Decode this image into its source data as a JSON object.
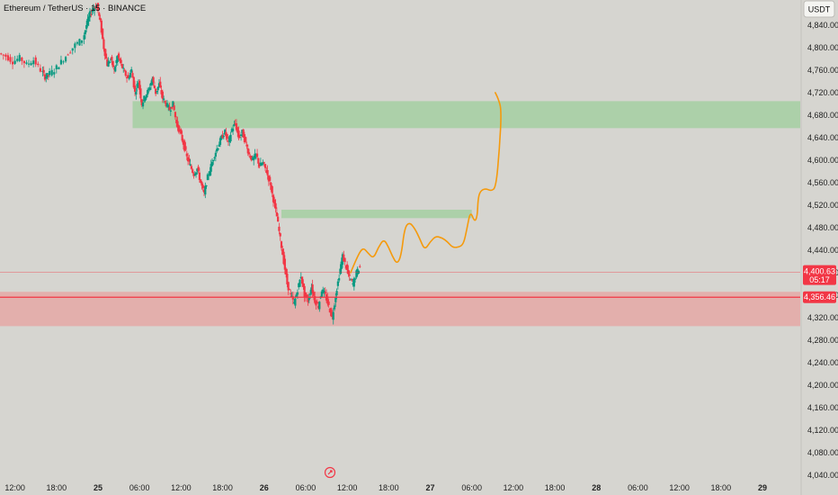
{
  "chart_data": {
    "type": "candlestick",
    "title": "Ethereum / TetherUS · 15 · BINANCE",
    "currency": "USDT",
    "ylim": [
      4020,
      4880
    ],
    "y_ticks": [
      4840,
      4800,
      4760,
      4720,
      4680,
      4640,
      4600,
      4560,
      4520,
      4480,
      4440,
      4400,
      4360,
      4320,
      4280,
      4240,
      4200,
      4160,
      4120,
      4080,
      4040
    ],
    "y_tick_labels": [
      "4,840.00",
      "4,800.00",
      "4,760.00",
      "4,720.00",
      "4,680.00",
      "4,640.00",
      "4,600.00",
      "4,560.00",
      "4,520.00",
      "4,480.00",
      "4,440.00",
      "4,400.00",
      "4,360.00",
      "4,320.00",
      "4,280.00",
      "4,240.00",
      "4,200.00",
      "4,160.00",
      "4,120.00",
      "4,080.00",
      "4,040.00"
    ],
    "x_ticks": [
      {
        "hour": -12,
        "label": "12:00",
        "bold": false
      },
      {
        "hour": -6,
        "label": "18:00",
        "bold": false
      },
      {
        "hour": 0,
        "label": "25",
        "bold": true
      },
      {
        "hour": 6,
        "label": "06:00",
        "bold": false
      },
      {
        "hour": 12,
        "label": "12:00",
        "bold": false
      },
      {
        "hour": 18,
        "label": "18:00",
        "bold": false
      },
      {
        "hour": 24,
        "label": "26",
        "bold": true
      },
      {
        "hour": 30,
        "label": "06:00",
        "bold": false
      },
      {
        "hour": 36,
        "label": "12:00",
        "bold": false
      },
      {
        "hour": 42,
        "label": "18:00",
        "bold": false
      },
      {
        "hour": 48,
        "label": "27",
        "bold": true
      },
      {
        "hour": 54,
        "label": "06:00",
        "bold": false
      },
      {
        "hour": 60,
        "label": "12:00",
        "bold": false
      },
      {
        "hour": 66,
        "label": "18:00",
        "bold": false
      },
      {
        "hour": 72,
        "label": "28",
        "bold": true
      },
      {
        "hour": 78,
        "label": "06:00",
        "bold": false
      },
      {
        "hour": 84,
        "label": "12:00",
        "bold": false
      },
      {
        "hour": 90,
        "label": "18:00",
        "bold": false
      },
      {
        "hour": 96,
        "label": "29",
        "bold": true
      }
    ],
    "price_path": [
      [
        -14.0,
        4790
      ],
      [
        -13.0,
        4785
      ],
      [
        -12.0,
        4775
      ],
      [
        -11.0,
        4782
      ],
      [
        -10.0,
        4770
      ],
      [
        -9.0,
        4778
      ],
      [
        -8.0,
        4760
      ],
      [
        -7.5,
        4748
      ],
      [
        -7.0,
        4752
      ],
      [
        -6.0,
        4760
      ],
      [
        -5.0,
        4775
      ],
      [
        -4.0,
        4790
      ],
      [
        -3.0,
        4805
      ],
      [
        -2.0,
        4815
      ],
      [
        -1.5,
        4840
      ],
      [
        -1.0,
        4860
      ],
      [
        -0.5,
        4870
      ],
      [
        0.0,
        4875
      ],
      [
        0.5,
        4845
      ],
      [
        1.0,
        4800
      ],
      [
        1.5,
        4770
      ],
      [
        2.0,
        4780
      ],
      [
        2.5,
        4760
      ],
      [
        3.0,
        4785
      ],
      [
        3.5,
        4770
      ],
      [
        4.0,
        4755
      ],
      [
        4.5,
        4745
      ],
      [
        5.0,
        4760
      ],
      [
        5.5,
        4720
      ],
      [
        6.0,
        4740
      ],
      [
        6.5,
        4700
      ],
      [
        7.0,
        4715
      ],
      [
        7.5,
        4725
      ],
      [
        8.0,
        4745
      ],
      [
        8.5,
        4720
      ],
      [
        9.0,
        4735
      ],
      [
        9.5,
        4710
      ],
      [
        10.0,
        4700
      ],
      [
        10.5,
        4690
      ],
      [
        11.0,
        4700
      ],
      [
        11.5,
        4665
      ],
      [
        12.0,
        4650
      ],
      [
        12.5,
        4630
      ],
      [
        13.0,
        4605
      ],
      [
        13.5,
        4590
      ],
      [
        14.0,
        4575
      ],
      [
        14.5,
        4585
      ],
      [
        15.0,
        4560
      ],
      [
        15.5,
        4540
      ],
      [
        16.0,
        4570
      ],
      [
        16.5,
        4590
      ],
      [
        17.0,
        4610
      ],
      [
        17.5,
        4625
      ],
      [
        18.0,
        4640
      ],
      [
        18.5,
        4650
      ],
      [
        19.0,
        4630
      ],
      [
        19.5,
        4655
      ],
      [
        20.0,
        4665
      ],
      [
        20.5,
        4640
      ],
      [
        21.0,
        4650
      ],
      [
        21.5,
        4630
      ],
      [
        22.0,
        4610
      ],
      [
        22.5,
        4600
      ],
      [
        23.0,
        4610
      ],
      [
        23.5,
        4590
      ],
      [
        24.0,
        4595
      ],
      [
        24.5,
        4580
      ],
      [
        25.0,
        4560
      ],
      [
        25.5,
        4530
      ],
      [
        26.0,
        4500
      ],
      [
        26.5,
        4460
      ],
      [
        27.0,
        4420
      ],
      [
        27.5,
        4380
      ],
      [
        28.0,
        4360
      ],
      [
        28.5,
        4345
      ],
      [
        29.0,
        4370
      ],
      [
        29.5,
        4395
      ],
      [
        30.0,
        4360
      ],
      [
        30.5,
        4350
      ],
      [
        31.0,
        4375
      ],
      [
        31.5,
        4350
      ],
      [
        32.0,
        4340
      ],
      [
        32.5,
        4370
      ],
      [
        33.0,
        4360
      ],
      [
        33.5,
        4340
      ],
      [
        34.0,
        4320
      ],
      [
        34.5,
        4360
      ],
      [
        35.0,
        4395
      ],
      [
        35.5,
        4430
      ],
      [
        36.0,
        4410
      ],
      [
        36.5,
        4390
      ],
      [
        37.0,
        4380
      ],
      [
        37.5,
        4400
      ],
      [
        38.0,
        4410
      ]
    ],
    "current_price": {
      "value": 4400.63,
      "label": "4,400.63",
      "countdown": "05:17",
      "color": "#f23645"
    },
    "level_line": {
      "value": 4356.46,
      "label": "4,356.46",
      "color": "#f23645"
    },
    "zones": [
      {
        "kind": "resistance",
        "from_hour": 5.0,
        "to_hour": 999,
        "top": 4705,
        "bottom": 4657,
        "color": "#a5cfa2"
      },
      {
        "kind": "resistance",
        "from_hour": 26.5,
        "to_hour": 54,
        "top": 4512,
        "bottom": 4497,
        "color": "#a5cfa2"
      },
      {
        "kind": "support",
        "from_hour": -15,
        "to_hour": 999,
        "top": 4366,
        "bottom": 4305,
        "color": "#e5a8a6"
      }
    ],
    "projection": {
      "color": "#f59a0c",
      "points": [
        [
          36.5,
          4400
        ],
        [
          37.5,
          4430
        ],
        [
          38.3,
          4445
        ],
        [
          39.0,
          4435
        ],
        [
          39.8,
          4425
        ],
        [
          40.5,
          4445
        ],
        [
          41.3,
          4460
        ],
        [
          42.0,
          4445
        ],
        [
          42.5,
          4430
        ],
        [
          43.2,
          4415
        ],
        [
          43.8,
          4430
        ],
        [
          44.3,
          4480
        ],
        [
          45.0,
          4490
        ],
        [
          45.8,
          4478
        ],
        [
          46.5,
          4460
        ],
        [
          47.2,
          4440
        ],
        [
          48.0,
          4455
        ],
        [
          48.8,
          4465
        ],
        [
          49.7,
          4462
        ],
        [
          50.5,
          4455
        ],
        [
          51.2,
          4445
        ],
        [
          52.0,
          4445
        ],
        [
          52.8,
          4450
        ],
        [
          53.3,
          4478
        ],
        [
          53.8,
          4510
        ],
        [
          54.4,
          4490
        ],
        [
          54.8,
          4500
        ],
        [
          54.9,
          4530
        ],
        [
          55.2,
          4545
        ],
        [
          56.0,
          4550
        ],
        [
          56.8,
          4545
        ],
        [
          57.5,
          4552
        ],
        [
          58.0,
          4620
        ],
        [
          58.3,
          4690
        ],
        [
          57.8,
          4710
        ],
        [
          57.4,
          4720
        ]
      ]
    },
    "legend": "none",
    "grid": false
  }
}
